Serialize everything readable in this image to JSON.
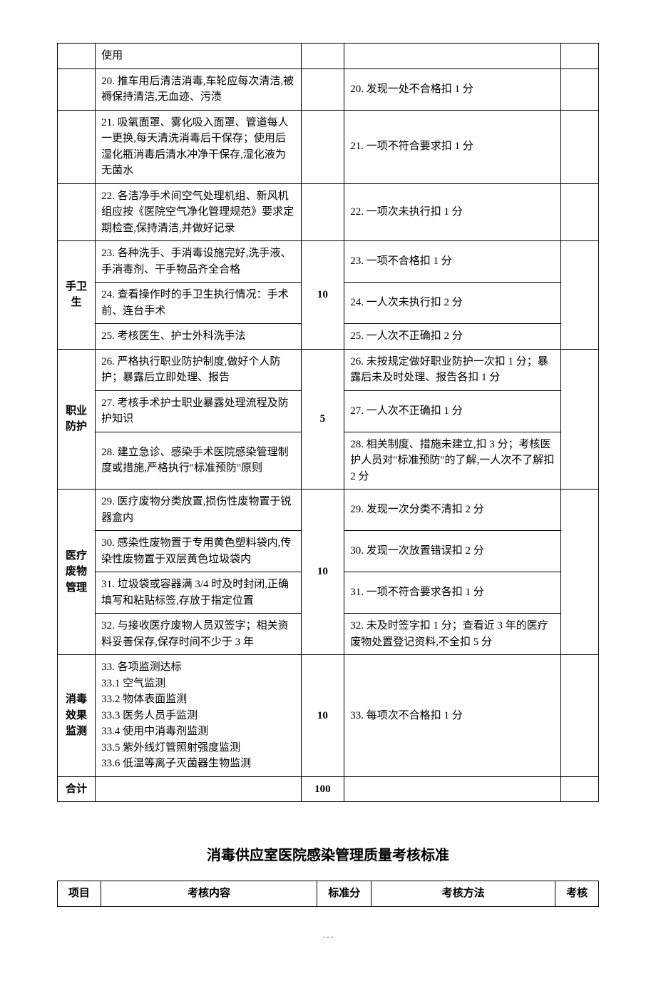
{
  "table1": {
    "col_widths": [
      "7%",
      "38%",
      "8%",
      "40%",
      "7%"
    ],
    "rows": [
      {
        "category": "",
        "content": "使用",
        "score": "",
        "method": "",
        "last": ""
      },
      {
        "category": "",
        "content": "20. 推车用后清洁消毒,车轮应每次清洁,被褥保持清洁,无血迹、污渍",
        "score": "",
        "method": "20. 发现一处不合格扣 1 分",
        "last": ""
      },
      {
        "category": "",
        "content": "21. 吸氧面罩、雾化吸入面罩、管道每人一更换,每天清洗消毒后干保存；使用后湿化瓶消毒后清水冲净干保存,湿化液为无菌水",
        "score": "",
        "method": "21. 一项不符合要求扣 1 分",
        "last": ""
      },
      {
        "category": "",
        "content": "22. 各洁净手术间空气处理机组、新风机组应按《医院空气净化管理规范》要求定期检查,保持清洁,并做好记录",
        "score": "",
        "method": "22. 一项次未执行扣 1 分",
        "last": ""
      },
      {
        "category": "手卫生",
        "cat_rowspan": 3,
        "content": "23. 各种洗手、手消毒设施完好,洗手液、手消毒剂、干手物品齐全合格",
        "score": "10",
        "score_rowspan": 3,
        "method": "23. 一项不合格扣 1 分",
        "last": "",
        "last_rowspan": 3
      },
      {
        "content": "24. 查看操作时的手卫生执行情况：手术前、连台手术",
        "method": "24. 一人次未执行扣 2 分"
      },
      {
        "content": "25. 考核医生、护士外科洗手法",
        "method": "25. 一人次不正确扣 2 分"
      },
      {
        "category": "职业防护",
        "cat_rowspan": 3,
        "content": "26. 严格执行职业防护制度,做好个人防护；暴露后立即处理、报告",
        "score": "5",
        "score_rowspan": 3,
        "method": "26. 未按规定做好职业防护一次扣 1 分；暴露后未及时处理、报告各扣 1 分",
        "last": "",
        "last_rowspan": 3
      },
      {
        "content": "27. 考核手术护士职业暴露处理流程及防护知识",
        "method": "27. 一人次不正确扣 1 分"
      },
      {
        "content": "28. 建立急诊、感染手术医院感染管理制度或措施,严格执行\"标准预防\"原则",
        "method": "28. 相关制度、措施未建立,扣 3 分；考核医护人员对\"标准预防\"的了解,一人次不了解扣 2 分"
      },
      {
        "category": "医疗废物管理",
        "cat_rowspan": 4,
        "content": "29. 医疗废物分类放置,损伤性废物置于锐器盒内",
        "score": "10",
        "score_rowspan": 4,
        "method": "29. 发现一次分类不清扣 2 分",
        "last": "",
        "last_rowspan": 4
      },
      {
        "content": "30. 感染性废物置于专用黄色塑料袋内,传染性废物置于双层黄色垃圾袋内",
        "method": "30. 发现一次放置错误扣 2 分"
      },
      {
        "content": "31. 垃圾袋或容器满 3/4 时及时封闭,正确填写和粘贴标签,存放于指定位置",
        "method": "31. 一项不符合要求各扣 1 分"
      },
      {
        "content": "32. 与接收医疗废物人员双签字；相关资料妥善保存,保存时间不少于 3 年",
        "method": "32. 未及时签字扣 1 分；查看近 3 年的医疗废物处置登记资料,不全扣 5 分"
      },
      {
        "category": "消毒效果监测",
        "cat_rowspan": 1,
        "content": "33. 各项监测达标\n33.1 空气监测\n33.2 物体表面监测\n33.3 医务人员手监测\n33.4 使用中消毒剂监测\n33.5 紫外线灯管照射强度监测\n33.6 低温等离子灭菌器生物监测",
        "score": "10",
        "score_rowspan": 1,
        "method": "33. 每项次不合格扣 1 分",
        "last": "",
        "last_rowspan": 1
      },
      {
        "category": "合计",
        "content": "",
        "score": "100",
        "method": "",
        "last": ""
      }
    ]
  },
  "section2": {
    "title": "消毒供应室医院感染管理质量考核标准",
    "headers": [
      "项目",
      "考核内容",
      "标准分",
      "考核方法",
      "考核"
    ],
    "col_widths": [
      "8%",
      "40%",
      "10%",
      "34%",
      "8%"
    ]
  },
  "page_marker": ". . ."
}
